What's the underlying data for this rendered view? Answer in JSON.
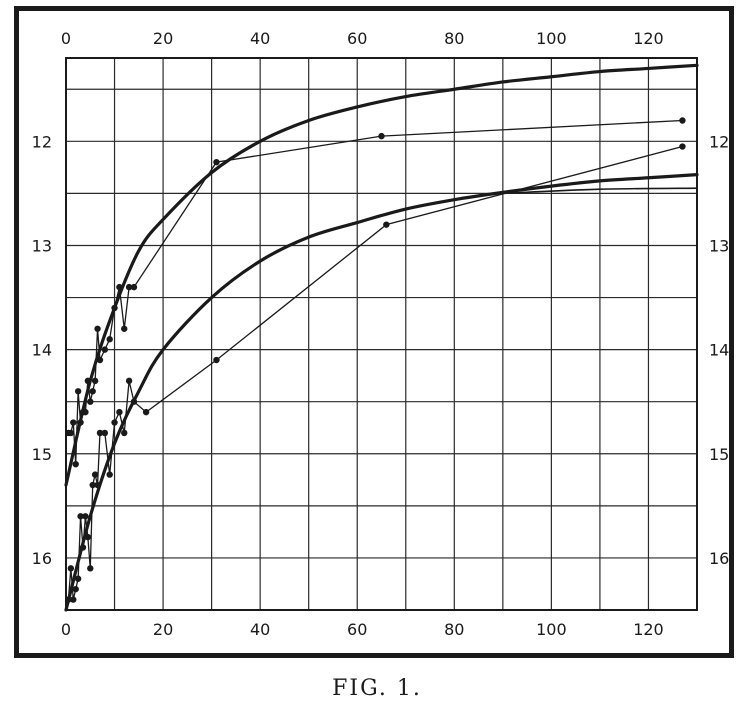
{
  "caption": "FIG. 1.",
  "chart_data": {
    "type": "line",
    "title": "",
    "xlabel": "",
    "ylabel": "",
    "xlim": [
      0,
      130
    ],
    "ylim": [
      16.5,
      11.2
    ],
    "y_axis_inverted": true,
    "x_ticks": [
      0,
      20,
      40,
      60,
      80,
      100,
      120
    ],
    "x_tick_labels": [
      "0",
      "20",
      "40",
      "60",
      "80",
      "100",
      "120"
    ],
    "x_ticks_top": [
      0,
      20,
      40,
      60,
      80,
      100,
      120
    ],
    "x_tick_labels_top": [
      "0",
      "20",
      "40",
      "60",
      "80",
      "100",
      "120"
    ],
    "y_ticks_left": [
      12,
      13,
      14,
      15,
      16
    ],
    "y_tick_labels_left": [
      "12",
      "13",
      "14",
      "15",
      "16"
    ],
    "y_ticks_right": [
      12,
      13,
      14,
      15,
      16
    ],
    "y_tick_labels_right": [
      "12",
      "13",
      "14",
      "15",
      "16"
    ],
    "grid": true,
    "grid_x": [
      0,
      10,
      20,
      30,
      40,
      50,
      60,
      70,
      80,
      90,
      100,
      110,
      120,
      130
    ],
    "grid_y": [
      11.5,
      12,
      12.5,
      13,
      13.5,
      14,
      14.5,
      15,
      15.5,
      16,
      16.5
    ],
    "legend": "none",
    "series": [
      {
        "role": "observations",
        "style": "thin-with-dots",
        "points": [
          [
            0.5,
            16.4
          ],
          [
            1,
            16.1
          ],
          [
            1.5,
            16.4
          ],
          [
            2,
            16.3
          ],
          [
            2.5,
            16.2
          ],
          [
            3,
            15.6
          ],
          [
            3.5,
            15.9
          ],
          [
            4,
            15.6
          ],
          [
            4.5,
            15.8
          ],
          [
            5,
            16.1
          ],
          [
            5.5,
            15.3
          ],
          [
            6,
            15.2
          ],
          [
            6.5,
            15.3
          ],
          [
            7,
            14.8
          ],
          [
            8,
            14.8
          ],
          [
            9,
            15.2
          ],
          [
            10,
            14.7
          ],
          [
            11,
            14.6
          ],
          [
            12,
            14.8
          ],
          [
            13,
            14.3
          ],
          [
            14,
            14.5
          ],
          [
            16.5,
            14.6
          ],
          [
            31,
            14.1
          ],
          [
            66,
            12.8
          ],
          [
            127,
            12.05
          ]
        ]
      },
      {
        "role": "observations",
        "style": "thin-with-dots",
        "points": [
          [
            0.5,
            14.8
          ],
          [
            1,
            14.8
          ],
          [
            1.5,
            14.7
          ],
          [
            2,
            15.1
          ],
          [
            2.5,
            14.4
          ],
          [
            3,
            14.7
          ],
          [
            3.5,
            14.6
          ],
          [
            4,
            14.6
          ],
          [
            4.5,
            14.3
          ],
          [
            5,
            14.5
          ],
          [
            5.5,
            14.4
          ],
          [
            6,
            14.3
          ],
          [
            6.5,
            13.8
          ],
          [
            7,
            14.1
          ],
          [
            8,
            14.0
          ],
          [
            9,
            13.9
          ],
          [
            10,
            13.6
          ],
          [
            11,
            13.4
          ],
          [
            12,
            13.8
          ],
          [
            13,
            13.4
          ],
          [
            14,
            13.4
          ],
          [
            31,
            12.2
          ],
          [
            65,
            11.95
          ],
          [
            127,
            11.8
          ]
        ]
      },
      {
        "role": "fitted-curve",
        "style": "thick-smooth",
        "points": [
          [
            0,
            15.3
          ],
          [
            5,
            14.3
          ],
          [
            10,
            13.6
          ],
          [
            15,
            13.05
          ],
          [
            20,
            12.75
          ],
          [
            30,
            12.3
          ],
          [
            40,
            12.0
          ],
          [
            50,
            11.8
          ],
          [
            60,
            11.67
          ],
          [
            70,
            11.57
          ],
          [
            80,
            11.5
          ],
          [
            90,
            11.43
          ],
          [
            100,
            11.38
          ],
          [
            110,
            11.33
          ],
          [
            120,
            11.3
          ],
          [
            130,
            11.27
          ]
        ]
      },
      {
        "role": "fitted-curve",
        "style": "thick-smooth",
        "points": [
          [
            0,
            16.5
          ],
          [
            5,
            15.6
          ],
          [
            10,
            14.9
          ],
          [
            15,
            14.4
          ],
          [
            20,
            14.0
          ],
          [
            30,
            13.5
          ],
          [
            40,
            13.15
          ],
          [
            50,
            12.92
          ],
          [
            60,
            12.78
          ],
          [
            70,
            12.65
          ],
          [
            80,
            12.56
          ],
          [
            90,
            12.49
          ],
          [
            100,
            12.43
          ],
          [
            110,
            12.38
          ],
          [
            120,
            12.35
          ],
          [
            130,
            12.32
          ]
        ]
      },
      {
        "role": "fitted-curve",
        "style": "thin-smooth",
        "points": [
          [
            90,
            12.5
          ],
          [
            110,
            12.46
          ],
          [
            130,
            12.45
          ]
        ]
      }
    ]
  }
}
